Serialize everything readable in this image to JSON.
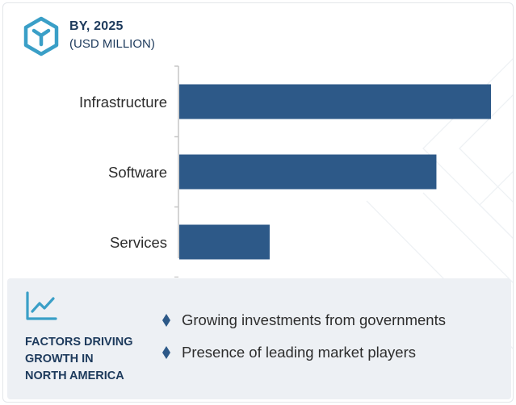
{
  "header": {
    "title": "BY, 2025",
    "subtitle": "(USD MILLION)",
    "logo_icon": "cube-icon"
  },
  "colors": {
    "bar": "#2d5988",
    "accent": "#3a9fc7",
    "heading": "#1d3a5c",
    "footer_bg": "#edf0f4",
    "axis": "#c6c6c6"
  },
  "chart_data": {
    "type": "bar",
    "orientation": "horizontal",
    "categories": [
      "Infrastructure",
      "Software",
      "Services"
    ],
    "values": [
      100,
      82.5,
      29
    ],
    "xlim": [
      0,
      100
    ],
    "grid": false,
    "legend": "none",
    "value_axis_labels": "none"
  },
  "footer": {
    "icon": "trend-line-icon",
    "title_lines": [
      "FACTORS DRIVING",
      "GROWTH IN",
      "NORTH AMERICA"
    ],
    "bullet_icon": "diamond-bullet-icon",
    "factors": [
      "Growing investments from governments",
      "Presence of leading market players"
    ]
  }
}
